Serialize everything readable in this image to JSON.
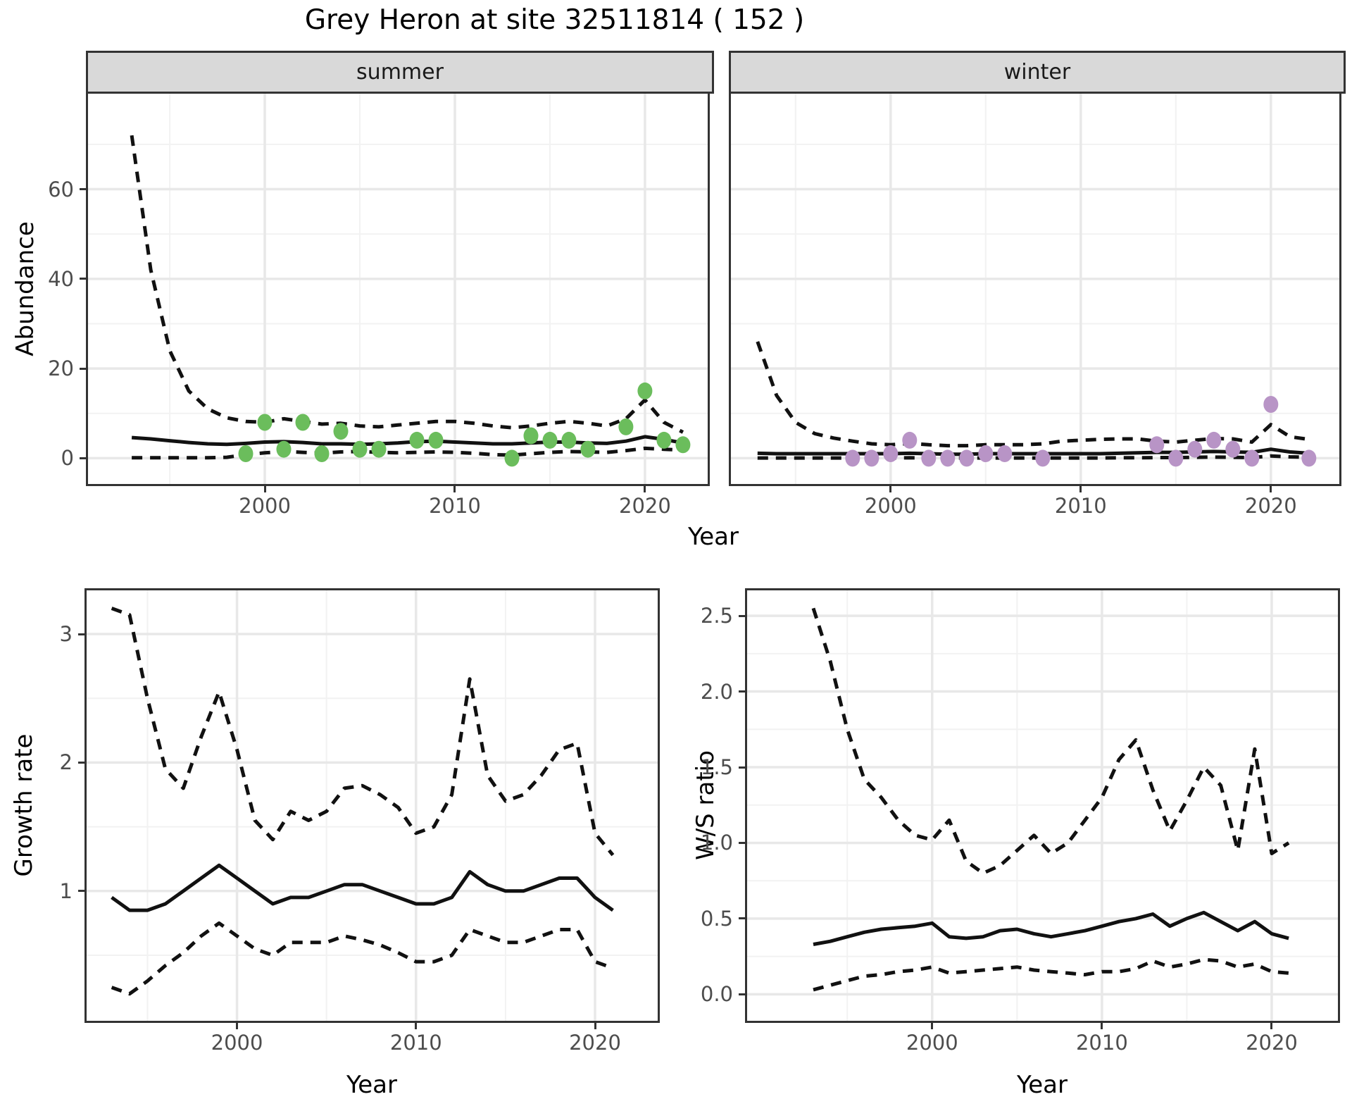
{
  "title": "Grey Heron at site 32511814 ( 152 )",
  "facets": {
    "summer": "summer",
    "winter": "winter"
  },
  "axis_labels": {
    "x": "Year",
    "y_top": "Abundance",
    "y_growth": "Growth rate",
    "y_ws": "W/S ratio"
  },
  "colors": {
    "summer_point": "#6BBD5C",
    "winter_point": "#B894C6",
    "line": "#111111",
    "strip_bg": "#D9D9D9",
    "grid_major": "#E8E8E8",
    "grid_minor": "#F2F2F2",
    "axis_text": "#4D4D4D",
    "panel_border": "#333333"
  },
  "chart_data": [
    {
      "id": "abundance-summer",
      "type": "line",
      "facet_label": "summer",
      "ylabel": "Abundance",
      "xlabel": "Year",
      "years": [
        1993,
        1994,
        1995,
        1996,
        1997,
        1998,
        1999,
        2000,
        2001,
        2002,
        2003,
        2004,
        2005,
        2006,
        2007,
        2008,
        2009,
        2010,
        2011,
        2012,
        2013,
        2014,
        2015,
        2016,
        2017,
        2018,
        2019,
        2020,
        2021,
        2022
      ],
      "series": [
        {
          "name": "upper_ci",
          "style": "dashed",
          "values": [
            72,
            42,
            24,
            15,
            11,
            9,
            8.2,
            8,
            8.8,
            8.2,
            7.6,
            7.8,
            7.2,
            7,
            7.4,
            7.8,
            8.2,
            8.2,
            7.8,
            7.2,
            6.8,
            7.2,
            7.8,
            8.2,
            7.8,
            7.2,
            8.8,
            13,
            8,
            5.8
          ]
        },
        {
          "name": "median",
          "style": "solid",
          "values": [
            4.6,
            4.3,
            3.9,
            3.5,
            3.2,
            3.1,
            3.3,
            3.6,
            3.7,
            3.5,
            3.2,
            3.2,
            3.1,
            3.2,
            3.4,
            3.7,
            3.8,
            3.6,
            3.4,
            3.2,
            3.2,
            3.4,
            3.6,
            3.6,
            3.4,
            3.3,
            3.8,
            4.8,
            4.2,
            3.4
          ]
        },
        {
          "name": "lower_ci",
          "style": "dashed",
          "values": [
            0.1,
            0.1,
            0.1,
            0.1,
            0.1,
            0.2,
            0.8,
            1.2,
            1.5,
            1.3,
            1.1,
            1.4,
            1.5,
            1.3,
            1.2,
            1.3,
            1.4,
            1.3,
            1.1,
            0.8,
            0.7,
            1,
            1.3,
            1.5,
            1.4,
            1.3,
            1.7,
            2.2,
            2,
            1.8
          ]
        }
      ],
      "points": {
        "color_key": "summer_point",
        "data": [
          [
            1999,
            1
          ],
          [
            2000,
            8
          ],
          [
            2001,
            2
          ],
          [
            2002,
            8
          ],
          [
            2003,
            1
          ],
          [
            2004,
            6
          ],
          [
            2005,
            2
          ],
          [
            2006,
            2
          ],
          [
            2008,
            4
          ],
          [
            2009,
            4
          ],
          [
            2013,
            0
          ],
          [
            2014,
            5
          ],
          [
            2015,
            4
          ],
          [
            2016,
            4
          ],
          [
            2017,
            2
          ],
          [
            2019,
            7
          ],
          [
            2020,
            15
          ],
          [
            2021,
            4
          ],
          [
            2022,
            3
          ]
        ]
      },
      "xlim": [
        1990.7,
        2023.3
      ],
      "ylim": [
        -5.75,
        81.3
      ],
      "x_breaks": [
        2000,
        2010,
        2020
      ],
      "x_break_labels": [
        "2000",
        "2010",
        "2020"
      ],
      "x_minor": [
        1995,
        2005,
        2015
      ],
      "y_breaks": [
        0,
        20,
        40,
        60
      ],
      "y_break_labels": [
        "0",
        "20",
        "40",
        "60"
      ],
      "y_minor": [
        10,
        30,
        50,
        70
      ],
      "show_y_axis": true,
      "grid": true
    },
    {
      "id": "abundance-winter",
      "type": "line",
      "facet_label": "winter",
      "ylabel": "Abundance",
      "xlabel": "Year",
      "years": [
        1993,
        1994,
        1995,
        1996,
        1997,
        1998,
        1999,
        2000,
        2001,
        2002,
        2003,
        2004,
        2005,
        2006,
        2007,
        2008,
        2009,
        2010,
        2011,
        2012,
        2013,
        2014,
        2015,
        2016,
        2017,
        2018,
        2019,
        2020,
        2021,
        2022
      ],
      "series": [
        {
          "name": "upper_ci",
          "style": "dashed",
          "values": [
            26,
            14,
            8,
            5.5,
            4.5,
            3.8,
            3.2,
            3,
            3.3,
            3,
            2.8,
            2.8,
            3,
            3,
            3,
            3.2,
            3.8,
            4,
            4.2,
            4.3,
            4.3,
            3.8,
            3.6,
            4,
            4.4,
            4.3,
            3.6,
            7.5,
            4.8,
            4.2
          ]
        },
        {
          "name": "median",
          "style": "solid",
          "values": [
            1.1,
            1,
            1,
            1,
            1,
            1,
            1,
            1,
            1.1,
            1,
            0.9,
            0.9,
            1,
            1,
            1,
            1,
            1,
            1,
            1,
            1.1,
            1.2,
            1.3,
            1.3,
            1.4,
            1.5,
            1.4,
            1.3,
            2,
            1.4,
            1.1
          ]
        },
        {
          "name": "lower_ci",
          "style": "dashed",
          "values": [
            0.05,
            0.05,
            0.05,
            0.05,
            0.05,
            0.05,
            0.05,
            0.05,
            0.1,
            0.05,
            0.05,
            0.05,
            0.05,
            0.05,
            0.05,
            0.05,
            0.05,
            0.05,
            0.05,
            0.1,
            0.1,
            0.15,
            0.15,
            0.2,
            0.25,
            0.2,
            0.15,
            0.5,
            0.3,
            0.2
          ]
        }
      ],
      "points": {
        "color_key": "winter_point",
        "data": [
          [
            1998,
            0
          ],
          [
            1999,
            0
          ],
          [
            2000,
            1
          ],
          [
            2001,
            4
          ],
          [
            2002,
            0
          ],
          [
            2003,
            0
          ],
          [
            2004,
            0
          ],
          [
            2005,
            1
          ],
          [
            2006,
            1
          ],
          [
            2008,
            0
          ],
          [
            2014,
            3
          ],
          [
            2015,
            0
          ],
          [
            2016,
            2
          ],
          [
            2017,
            4
          ],
          [
            2018,
            2
          ],
          [
            2019,
            0
          ],
          [
            2020,
            12
          ],
          [
            2022,
            0
          ]
        ]
      },
      "xlim": [
        1991.6,
        2023.6
      ],
      "ylim": [
        -5.75,
        81.3
      ],
      "x_breaks": [
        2000,
        2010,
        2020
      ],
      "x_break_labels": [
        "2000",
        "2010",
        "2020"
      ],
      "x_minor": [
        1995,
        2005,
        2015
      ],
      "y_breaks": [
        0,
        20,
        40,
        60
      ],
      "y_break_labels": [
        "0",
        "20",
        "40",
        "60"
      ],
      "y_minor": [
        10,
        30,
        50,
        70
      ],
      "show_y_axis": false,
      "grid": true
    },
    {
      "id": "growth-rate",
      "type": "line",
      "facet_label": "",
      "ylabel": "Growth rate",
      "xlabel": "Year",
      "years": [
        1993,
        1994,
        1995,
        1996,
        1997,
        1998,
        1999,
        2000,
        2001,
        2002,
        2003,
        2004,
        2005,
        2006,
        2007,
        2008,
        2009,
        2010,
        2011,
        2012,
        2013,
        2014,
        2015,
        2016,
        2017,
        2018,
        2019,
        2020,
        2021
      ],
      "series": [
        {
          "name": "upper_ci",
          "style": "dashed",
          "values": [
            3.2,
            3.15,
            2.5,
            1.95,
            1.8,
            2.2,
            2.55,
            2.1,
            1.55,
            1.4,
            1.62,
            1.55,
            1.62,
            1.8,
            1.82,
            1.75,
            1.65,
            1.45,
            1.5,
            1.75,
            2.65,
            1.9,
            1.7,
            1.75,
            1.9,
            2.1,
            2.15,
            1.45,
            1.28
          ]
        },
        {
          "name": "median",
          "style": "solid",
          "values": [
            0.95,
            0.85,
            0.85,
            0.9,
            1,
            1.1,
            1.2,
            1.1,
            1,
            0.9,
            0.95,
            0.95,
            1,
            1.05,
            1.05,
            1,
            0.95,
            0.9,
            0.9,
            0.95,
            1.15,
            1.05,
            1,
            1,
            1.05,
            1.1,
            1.1,
            0.95,
            0.85
          ]
        },
        {
          "name": "lower_ci",
          "style": "dashed",
          "values": [
            0.25,
            0.2,
            0.3,
            0.42,
            0.52,
            0.65,
            0.75,
            0.65,
            0.55,
            0.5,
            0.6,
            0.6,
            0.6,
            0.65,
            0.62,
            0.58,
            0.52,
            0.45,
            0.45,
            0.5,
            0.7,
            0.65,
            0.6,
            0.6,
            0.65,
            0.7,
            0.7,
            0.45,
            0.4
          ]
        }
      ],
      "points": {
        "color_key": "",
        "data": []
      },
      "xlim": [
        1991.6,
        2023.5
      ],
      "ylim": [
        -0.01,
        3.34
      ],
      "x_breaks": [
        2000,
        2010,
        2020
      ],
      "x_break_labels": [
        "2000",
        "2010",
        "2020"
      ],
      "x_minor": [
        1995,
        2005,
        2015
      ],
      "y_breaks": [
        1,
        2,
        3
      ],
      "y_break_labels": [
        "1",
        "2",
        "3"
      ],
      "y_minor": [
        0.5,
        1.5,
        2.5
      ],
      "show_y_axis": true,
      "grid": true
    },
    {
      "id": "ws-ratio",
      "type": "line",
      "facet_label": "",
      "ylabel": "W/S ratio",
      "xlabel": "Year",
      "years": [
        1993,
        1994,
        1995,
        1996,
        1997,
        1998,
        1999,
        2000,
        2001,
        2002,
        2003,
        2004,
        2005,
        2006,
        2007,
        2008,
        2009,
        2010,
        2011,
        2012,
        2013,
        2014,
        2015,
        2016,
        2017,
        2018,
        2019,
        2020,
        2021
      ],
      "series": [
        {
          "name": "upper_ci",
          "style": "dashed",
          "values": [
            2.55,
            2.2,
            1.75,
            1.42,
            1.3,
            1.15,
            1.05,
            1.02,
            1.15,
            0.88,
            0.8,
            0.85,
            0.95,
            1.05,
            0.93,
            1.0,
            1.15,
            1.3,
            1.55,
            1.68,
            1.35,
            1.08,
            1.28,
            1.5,
            1.38,
            0.95,
            1.62,
            0.93,
            1.0
          ]
        },
        {
          "name": "median",
          "style": "solid",
          "values": [
            0.33,
            0.35,
            0.38,
            0.41,
            0.43,
            0.44,
            0.45,
            0.47,
            0.38,
            0.37,
            0.38,
            0.42,
            0.43,
            0.4,
            0.38,
            0.4,
            0.42,
            0.45,
            0.48,
            0.5,
            0.53,
            0.45,
            0.5,
            0.54,
            0.48,
            0.42,
            0.48,
            0.4,
            0.37
          ]
        },
        {
          "name": "lower_ci",
          "style": "dashed",
          "values": [
            0.03,
            0.06,
            0.09,
            0.12,
            0.13,
            0.15,
            0.16,
            0.18,
            0.14,
            0.15,
            0.16,
            0.17,
            0.18,
            0.16,
            0.15,
            0.14,
            0.13,
            0.15,
            0.15,
            0.17,
            0.22,
            0.18,
            0.2,
            0.23,
            0.22,
            0.18,
            0.2,
            0.15,
            0.14
          ]
        }
      ],
      "points": {
        "color_key": "",
        "data": []
      },
      "xlim": [
        1989.1,
        2023.9
      ],
      "ylim": [
        -0.175,
        2.668
      ],
      "x_breaks": [
        2000,
        2010,
        2020
      ],
      "x_break_labels": [
        "2000",
        "2010",
        "2020"
      ],
      "x_minor": [
        1995,
        2005,
        2015
      ],
      "y_breaks": [
        0,
        0.5,
        1,
        1.5,
        2,
        2.5
      ],
      "y_break_labels": [
        "0.0",
        "0.5",
        "1.0",
        "1.5",
        "2.0",
        "2.5"
      ],
      "y_minor": [
        0.25,
        0.75,
        1.25,
        1.75,
        2.25
      ],
      "show_y_axis": true,
      "grid": true
    }
  ]
}
